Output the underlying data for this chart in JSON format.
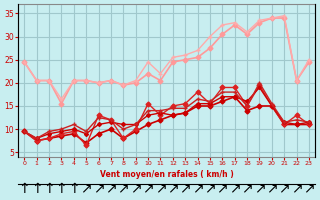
{
  "background_color": "#c8eef0",
  "grid_color": "#a0c8cc",
  "xlabel": "Vent moyen/en rafales ( km/h )",
  "ylabel_ticks": [
    5,
    10,
    15,
    20,
    25,
    30,
    35
  ],
  "xlim": [
    -0.5,
    23.5
  ],
  "ylim": [
    4,
    37
  ],
  "x": [
    0,
    1,
    2,
    3,
    4,
    5,
    6,
    7,
    8,
    9,
    10,
    11,
    12,
    13,
    14,
    15,
    16,
    17,
    18,
    19,
    20,
    21,
    22,
    23
  ],
  "lines": [
    {
      "y": [
        9.5,
        7.5,
        8,
        8.5,
        9,
        7,
        9,
        10,
        8,
        9.5,
        11,
        12,
        13,
        13.5,
        15,
        15,
        16,
        17,
        14,
        15,
        15,
        11,
        11,
        11
      ],
      "color": "#cc0000",
      "lw": 1.2,
      "marker": "D",
      "ms": 2.5
    },
    {
      "y": [
        9.5,
        7.5,
        8,
        9,
        9.5,
        6.5,
        13,
        12,
        8,
        10,
        15.5,
        13,
        15,
        15.5,
        18,
        15.5,
        19,
        19,
        15,
        19.5,
        15,
        11,
        13,
        11
      ],
      "color": "#dd2222",
      "lw": 1.0,
      "marker": "D",
      "ms": 2.5
    },
    {
      "y": [
        9.5,
        8,
        9,
        9.5,
        10,
        9,
        11,
        11.5,
        11,
        11,
        13,
        13.5,
        13,
        13.5,
        15.5,
        15.5,
        17,
        17,
        16,
        19,
        15,
        11.5,
        11,
        11.5
      ],
      "color": "#cc0000",
      "lw": 1.0,
      "marker": "D",
      "ms": 2.0
    },
    {
      "y": [
        9.5,
        8,
        9.5,
        10,
        11,
        9.5,
        12.5,
        12,
        10,
        11,
        14,
        14,
        14.5,
        14.5,
        16.5,
        16,
        18,
        18,
        15,
        20,
        15.5,
        11.5,
        12,
        11.5
      ],
      "color": "#cc2222",
      "lw": 1.0,
      "marker": "+",
      "ms": 2.5
    },
    {
      "y": [
        24.5,
        20.5,
        20.5,
        15.5,
        20.5,
        20.5,
        20,
        20.5,
        19.5,
        20,
        22,
        20.5,
        24.5,
        25,
        25.5,
        27.5,
        30.5,
        32.5,
        30.5,
        33,
        34,
        34,
        20.5,
        24.5
      ],
      "color": "#ff9999",
      "lw": 1.2,
      "marker": "D",
      "ms": 2.5
    },
    {
      "y": [
        24.5,
        20.5,
        20.5,
        16.5,
        20.5,
        20.5,
        20,
        20.5,
        19.5,
        20.5,
        24.5,
        22,
        25.5,
        26,
        27,
        30,
        32.5,
        33,
        31,
        33.5,
        34,
        34.5,
        20.5,
        25
      ],
      "color": "#ffaaaa",
      "lw": 1.0,
      "marker": "+",
      "ms": 2.5
    }
  ]
}
